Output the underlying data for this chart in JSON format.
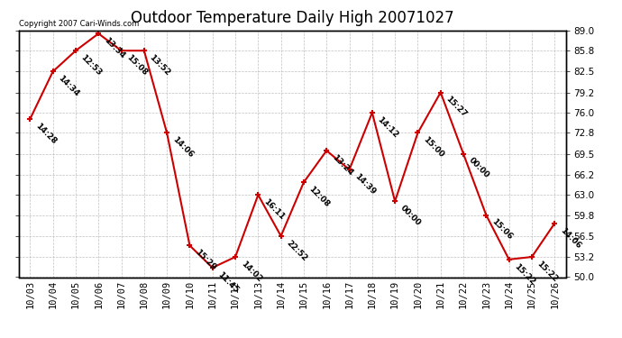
{
  "title": "Outdoor Temperature Daily High 20071027",
  "copyright": "Copyright 2007 Cari-Winds.com",
  "dates": [
    "10/03",
    "10/04",
    "10/05",
    "10/06",
    "10/07",
    "10/08",
    "10/09",
    "10/10",
    "10/11",
    "10/12",
    "10/13",
    "10/14",
    "10/15",
    "10/16",
    "10/17",
    "10/18",
    "10/19",
    "10/20",
    "10/21",
    "10/22",
    "10/23",
    "10/24",
    "10/25",
    "10/26"
  ],
  "values": [
    75.0,
    82.5,
    85.8,
    88.5,
    85.8,
    85.8,
    72.8,
    55.0,
    51.5,
    53.2,
    63.0,
    56.5,
    65.0,
    70.0,
    67.0,
    76.0,
    62.0,
    72.8,
    79.2,
    69.5,
    59.8,
    52.8,
    53.2,
    58.5
  ],
  "time_labels": [
    "14:28",
    "14:34",
    "12:53",
    "13:34",
    "15:08",
    "13:52",
    "14:06",
    "15:29",
    "11:45",
    "14:02",
    "16:11",
    "22:52",
    "12:08",
    "13:24",
    "14:39",
    "14:12",
    "00:00",
    "15:00",
    "15:27",
    "00:00",
    "15:06",
    "15:22",
    "15:22",
    "14:06"
  ],
  "line_color": "#cc0000",
  "marker_color": "#cc0000",
  "bg_color": "#ffffff",
  "plot_bg_color": "#ffffff",
  "grid_color": "#b0b0b0",
  "ylim": [
    50.0,
    89.0
  ],
  "yticks": [
    50.0,
    53.2,
    56.5,
    59.8,
    63.0,
    66.2,
    69.5,
    72.8,
    76.0,
    79.2,
    82.5,
    85.8,
    89.0
  ],
  "title_fontsize": 12,
  "label_fontsize": 6.5,
  "tick_fontsize": 7.5,
  "copyright_fontsize": 6
}
